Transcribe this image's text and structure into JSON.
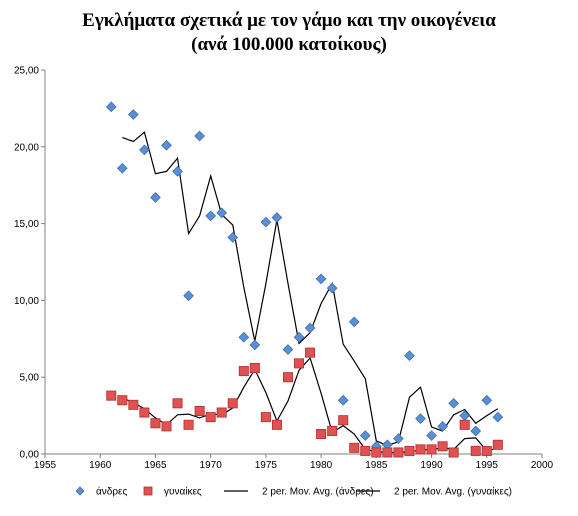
{
  "chart_data": {
    "type": "scatter",
    "title": [
      "Εγκλήματα σχετικά με τον γάμο και την οικογένεια",
      "(ανά 100.000 κατοίκους)"
    ],
    "xlabel": "",
    "ylabel": "",
    "xlim": [
      1955,
      2000
    ],
    "ylim": [
      0,
      25
    ],
    "xticks": [
      "1955",
      "1960",
      "1965",
      "1970",
      "1975",
      "1980",
      "1985",
      "1990",
      "1995",
      "2000"
    ],
    "yticks": [
      "0,00",
      "5,00",
      "10,00",
      "15,00",
      "20,00",
      "25,00"
    ],
    "grid": false,
    "legend_position": "bottom",
    "series": [
      {
        "name": "άνδρες",
        "kind": "scatter",
        "marker": "diamond",
        "color": "#5b8fd4",
        "x": [
          1961,
          1962,
          1963,
          1964,
          1965,
          1966,
          1967,
          1968,
          1969,
          1970,
          1971,
          1972,
          1973,
          1974,
          1975,
          1976,
          1977,
          1978,
          1979,
          1980,
          1981,
          1982,
          1983,
          1984,
          1985,
          1986,
          1987,
          1988,
          1989,
          1990,
          1991,
          1992,
          1993,
          1994,
          1995,
          1996
        ],
        "y": [
          22.6,
          18.6,
          22.1,
          19.8,
          16.7,
          20.1,
          18.4,
          10.3,
          20.7,
          15.5,
          15.7,
          14.1,
          7.6,
          7.1,
          15.1,
          15.4,
          6.8,
          7.6,
          8.2,
          11.4,
          10.8,
          3.5,
          8.6,
          1.2,
          0.5,
          0.6,
          1.0,
          6.4,
          2.3,
          1.2,
          1.8,
          3.3,
          2.5,
          1.5,
          3.5,
          2.4
        ]
      },
      {
        "name": "γυναίκες",
        "kind": "scatter",
        "marker": "square",
        "color": "#e05252",
        "x": [
          1961,
          1962,
          1963,
          1964,
          1965,
          1966,
          1967,
          1968,
          1969,
          1970,
          1971,
          1972,
          1973,
          1974,
          1975,
          1976,
          1977,
          1978,
          1979,
          1980,
          1981,
          1982,
          1983,
          1984,
          1985,
          1986,
          1987,
          1988,
          1989,
          1990,
          1991,
          1992,
          1993,
          1994,
          1995,
          1996
        ],
        "y": [
          3.8,
          3.5,
          3.2,
          2.7,
          2.0,
          1.8,
          3.3,
          1.9,
          2.8,
          2.4,
          2.7,
          3.3,
          5.4,
          5.6,
          2.4,
          1.9,
          5.0,
          5.9,
          6.6,
          1.3,
          1.5,
          2.2,
          0.4,
          0.2,
          0.1,
          0.1,
          0.1,
          0.2,
          0.3,
          0.3,
          0.5,
          0.1,
          1.9,
          0.2,
          0.2,
          0.6
        ]
      },
      {
        "name": "2 per. Mov. Avg. (άνδρες)",
        "kind": "line",
        "color": "#000000",
        "x": [
          1962,
          1963,
          1964,
          1965,
          1966,
          1967,
          1968,
          1969,
          1970,
          1971,
          1972,
          1973,
          1974,
          1975,
          1976,
          1977,
          1978,
          1979,
          1980,
          1981,
          1982,
          1983,
          1984,
          1985,
          1986,
          1987,
          1988,
          1989,
          1990,
          1991,
          1992,
          1993,
          1994,
          1995,
          1996
        ],
        "y": [
          20.6,
          20.35,
          20.95,
          18.25,
          18.4,
          19.25,
          14.35,
          15.5,
          18.1,
          15.6,
          14.9,
          10.85,
          7.35,
          11.1,
          15.25,
          11.1,
          7.2,
          7.9,
          9.8,
          11.1,
          7.15,
          6.05,
          4.9,
          0.85,
          0.55,
          0.8,
          3.7,
          4.35,
          1.75,
          1.5,
          2.55,
          2.9,
          2.0,
          2.5,
          2.95
        ]
      },
      {
        "name": "2 per. Mov. Avg. (γυναίκες)",
        "kind": "line",
        "color": "#000000",
        "x": [
          1962,
          1963,
          1964,
          1965,
          1966,
          1967,
          1968,
          1969,
          1970,
          1971,
          1972,
          1973,
          1974,
          1975,
          1976,
          1977,
          1978,
          1979,
          1980,
          1981,
          1982,
          1983,
          1984,
          1985,
          1986,
          1987,
          1988,
          1989,
          1990,
          1991,
          1992,
          1993,
          1994,
          1995,
          1996
        ],
        "y": [
          3.65,
          3.35,
          2.95,
          2.35,
          1.9,
          2.55,
          2.6,
          2.35,
          2.6,
          2.55,
          3.0,
          4.35,
          5.5,
          4.0,
          2.15,
          3.45,
          5.45,
          6.25,
          3.95,
          1.4,
          1.85,
          1.3,
          0.3,
          0.15,
          0.1,
          0.1,
          0.15,
          0.25,
          0.3,
          0.4,
          0.3,
          1.0,
          1.05,
          0.2,
          0.4
        ]
      }
    ]
  }
}
